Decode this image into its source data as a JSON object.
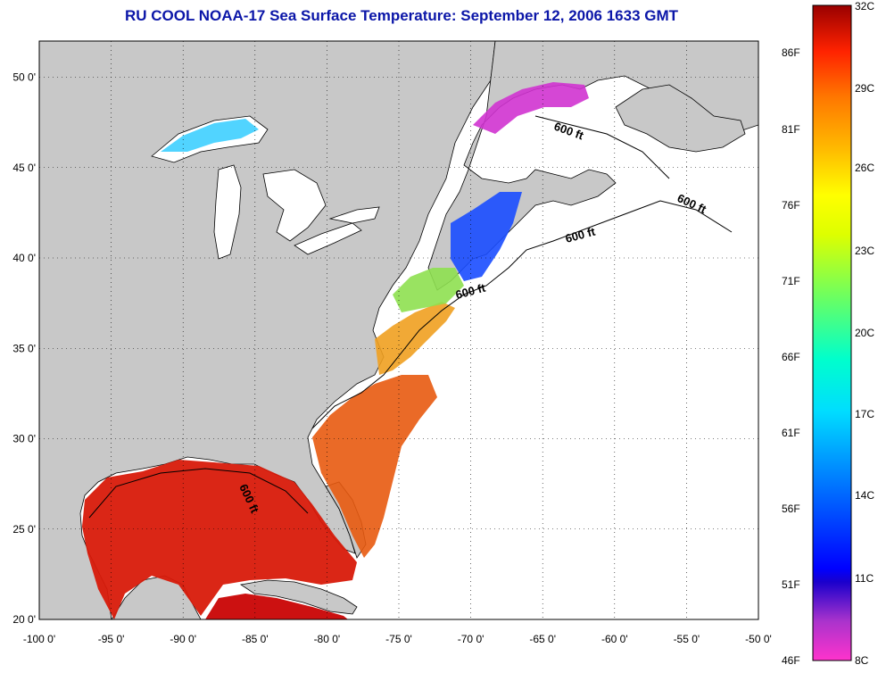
{
  "title": "RU COOL  NOAA-17  Sea Surface Temperature:  September 12, 2006 1633 GMT",
  "map": {
    "lon_range": [
      -100,
      -50
    ],
    "lat_range": [
      20,
      52
    ],
    "lon_ticks": [
      "-100 0'",
      "-95 0'",
      "-90 0'",
      "-85 0'",
      "-80 0'",
      "-75 0'",
      "-70 0'",
      "-65 0'",
      "-60 0'",
      "-55 0'",
      "-50 0'"
    ],
    "lat_ticks": [
      "20 0'",
      "25 0'",
      "30 0'",
      "35 0'",
      "40 0'",
      "45 0'",
      "50 0'"
    ],
    "land_color": "#c8c8c8",
    "water_color": "#ffffff",
    "grid": "dotted"
  },
  "contour_labels": [
    "600 ft",
    "600 ft",
    "600 ft",
    "600 ft",
    "600 ft"
  ],
  "colorbar": {
    "celsius_labels": [
      "32C",
      "29C",
      "26C",
      "23C",
      "20C",
      "17C",
      "14C",
      "11C",
      "8C"
    ],
    "fahrenheit_labels": [
      "86F",
      "81F",
      "76F",
      "71F",
      "66F",
      "61F",
      "56F",
      "51F",
      "46F"
    ],
    "range_c": [
      8,
      32
    ],
    "colors": [
      "#ff33cc",
      "#cc33cc",
      "#3300cc",
      "#0000ff",
      "#0066ff",
      "#00ccff",
      "#00ffcc",
      "#66ff66",
      "#ccff00",
      "#ffff00",
      "#ffcc00",
      "#ff9900",
      "#ff6600",
      "#ff3300",
      "#cc0000",
      "#990000"
    ]
  }
}
